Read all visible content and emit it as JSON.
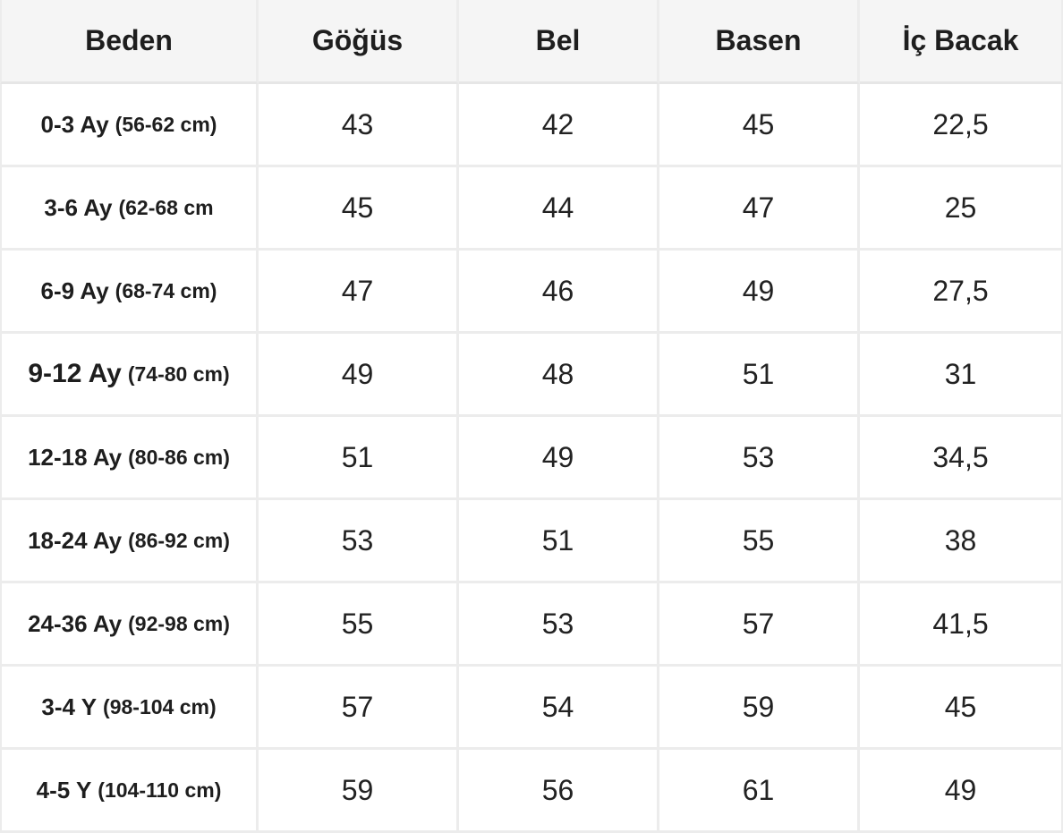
{
  "table": {
    "headers": [
      "Beden",
      "Göğüs",
      "Bel",
      "Basen",
      "İç Bacak"
    ],
    "rows": [
      {
        "size": "0-3 Ay",
        "range": "(56-62 cm)",
        "gogus": "43",
        "bel": "42",
        "basen": "45",
        "ic_bacak": "22,5"
      },
      {
        "size": "3-6 Ay",
        "range": "(62-68 cm",
        "gogus": "45",
        "bel": "44",
        "basen": "47",
        "ic_bacak": "25"
      },
      {
        "size": "6-9 Ay",
        "range": "(68-74 cm)",
        "gogus": "47",
        "bel": "46",
        "basen": "49",
        "ic_bacak": "27,5"
      },
      {
        "size": "9-12 Ay",
        "range": "(74-80 cm)",
        "gogus": "49",
        "bel": "48",
        "basen": "51",
        "ic_bacak": "31"
      },
      {
        "size": "12-18 Ay",
        "range": "(80-86 cm)",
        "gogus": "51",
        "bel": "49",
        "basen": "53",
        "ic_bacak": "34,5"
      },
      {
        "size": "18-24 Ay",
        "range": "(86-92 cm)",
        "gogus": "53",
        "bel": "51",
        "basen": "55",
        "ic_bacak": "38"
      },
      {
        "size": "24-36 Ay",
        "range": "(92-98 cm)",
        "gogus": "55",
        "bel": "53",
        "basen": "57",
        "ic_bacak": "41,5"
      },
      {
        "size": "3-4 Y",
        "range": "(98-104 cm)",
        "gogus": "57",
        "bel": "54",
        "basen": "59",
        "ic_bacak": "45"
      },
      {
        "size": "4-5 Y",
        "range": "(104-110 cm)",
        "gogus": "59",
        "bel": "56",
        "basen": "61",
        "ic_bacak": "49"
      }
    ]
  }
}
